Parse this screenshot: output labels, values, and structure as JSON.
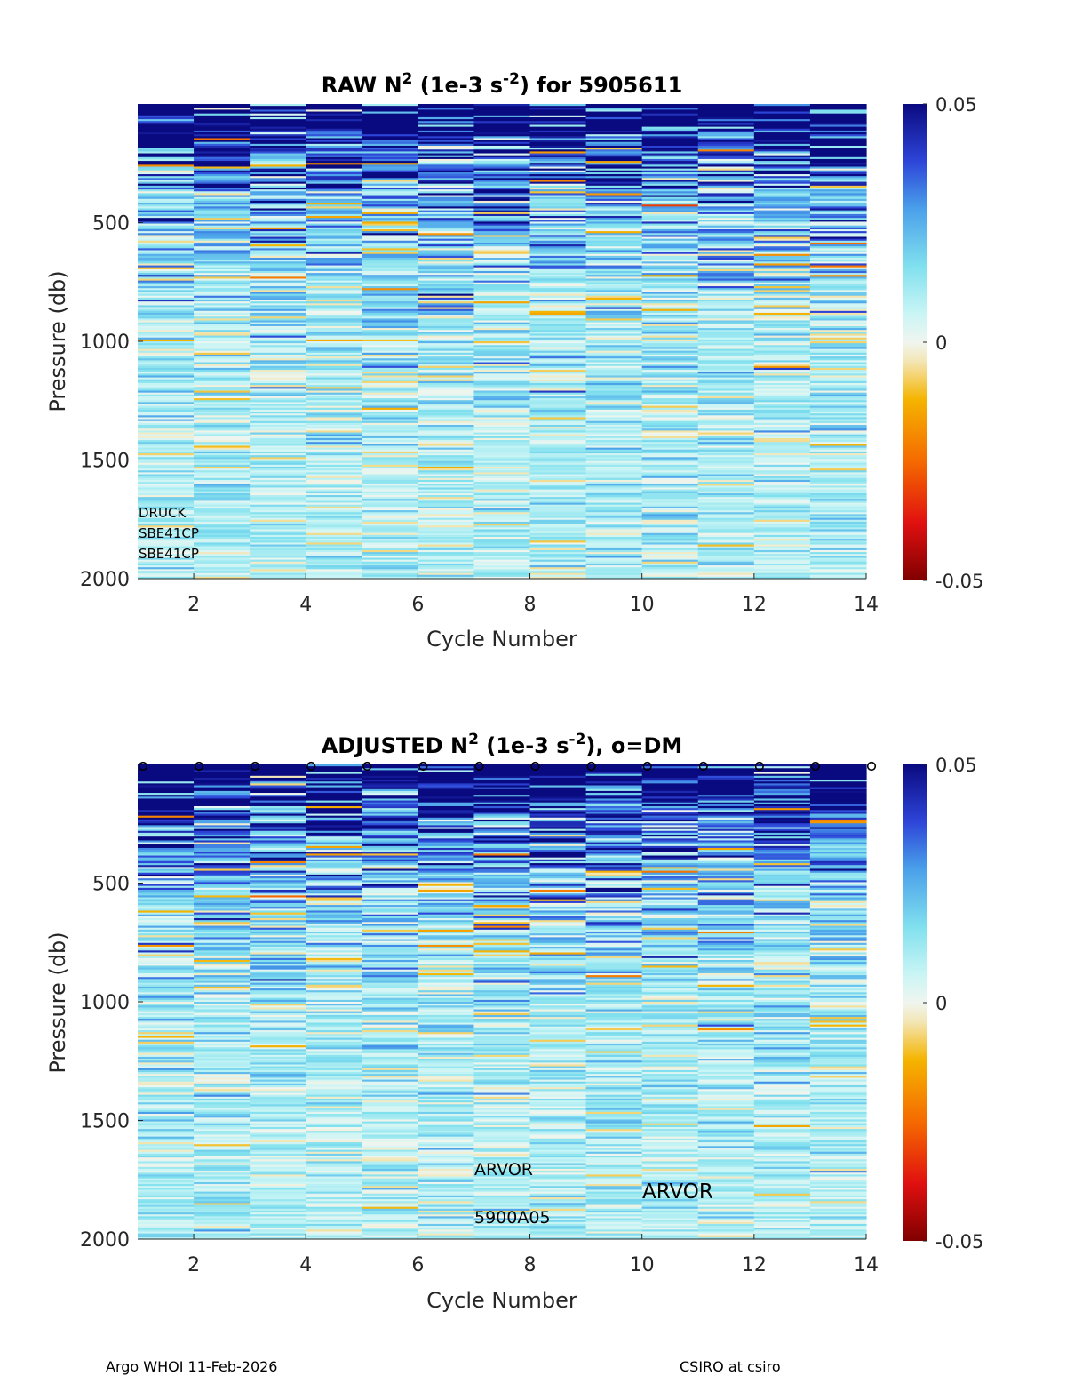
{
  "chart_data": [
    {
      "type": "heatmap",
      "panel": "raw",
      "title_parts": {
        "pre": "RAW N",
        "sup1": "2",
        "mid": " (1e-3 s",
        "sup2": "-2",
        "post": ") for 5905611"
      },
      "xlabel": "Cycle Number",
      "ylabel": "Pressure (db)",
      "x_range": [
        1,
        14
      ],
      "y_range": [
        0,
        2000
      ],
      "x_ticks": [
        "2",
        "4",
        "6",
        "8",
        "10",
        "12",
        "14"
      ],
      "x_tick_values": [
        2,
        4,
        6,
        8,
        10,
        12,
        14
      ],
      "y_ticks": [
        "500",
        "1000",
        "1500",
        "2000"
      ],
      "y_tick_values": [
        500,
        1000,
        1500,
        2000
      ],
      "cycles": [
        1,
        2,
        3,
        4,
        5,
        6,
        7,
        8,
        9,
        10,
        11,
        12,
        13
      ],
      "colorbar": {
        "min": -0.05,
        "max": 0.05,
        "ticks": [
          "0.05",
          "0",
          "-0.05"
        ],
        "tick_values": [
          0.05,
          0,
          -0.05
        ]
      },
      "annotations": [
        "DRUCK",
        "SBE41CP",
        "SBE41CP"
      ],
      "dm_markers": []
    },
    {
      "type": "heatmap",
      "panel": "adjusted",
      "title_parts": {
        "pre": "ADJUSTED N",
        "sup1": "2",
        "mid": " (1e-3 s",
        "sup2": "-2",
        "post": "), o=DM"
      },
      "xlabel": "Cycle Number",
      "ylabel": "Pressure (db)",
      "x_range": [
        1,
        14
      ],
      "y_range": [
        0,
        2000
      ],
      "x_ticks": [
        "2",
        "4",
        "6",
        "8",
        "10",
        "12",
        "14"
      ],
      "x_tick_values": [
        2,
        4,
        6,
        8,
        10,
        12,
        14
      ],
      "y_ticks": [
        "500",
        "1000",
        "1500",
        "2000"
      ],
      "y_tick_values": [
        500,
        1000,
        1500,
        2000
      ],
      "cycles": [
        1,
        2,
        3,
        4,
        5,
        6,
        7,
        8,
        9,
        10,
        11,
        12,
        13
      ],
      "colorbar": {
        "min": -0.05,
        "max": 0.05,
        "ticks": [
          "0.05",
          "0",
          "-0.05"
        ],
        "tick_values": [
          0.05,
          0,
          -0.05
        ]
      },
      "annotations": [
        "ARVOR",
        "5900A05",
        "ARVOR"
      ],
      "dm_markers": [
        1,
        2,
        3,
        4,
        5,
        6,
        7,
        8,
        9,
        10,
        11,
        12,
        13,
        14
      ]
    }
  ],
  "footer": {
    "left": "Argo WHOI 11-Feb-2026",
    "right": "CSIRO at csiro"
  },
  "colors": {
    "deep_blue": "#0d0d8a",
    "mid_blue": "#3a5ae0",
    "cyan": "#a8f0f0",
    "pale": "#f0f5dc",
    "orange": "#f5a800",
    "dark_red": "#800000"
  }
}
